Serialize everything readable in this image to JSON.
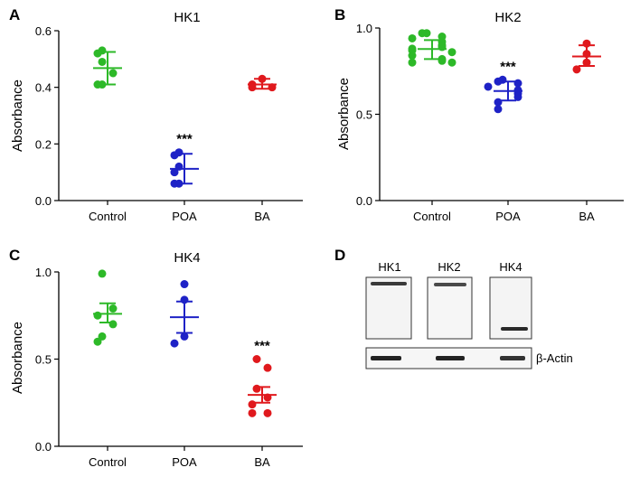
{
  "panels": [
    {
      "letter": "A",
      "chart_data": {
        "type": "scatter",
        "title": "HK1",
        "ylabel": "Absorbance",
        "ylim": [
          0,
          0.6
        ],
        "yticks": [
          "0.0",
          "0.2",
          "0.4",
          "0.6"
        ],
        "categories": [
          "Control",
          "POA",
          "BA"
        ],
        "colors": [
          "#2db928",
          "#1e22c6",
          "#e0191d"
        ],
        "groups": [
          {
            "category": "Control",
            "points": [
              0.53,
              0.52,
              0.49,
              0.45,
              0.41,
              0.41
            ],
            "mean": 0.468,
            "error": [
              0.41,
              0.525
            ]
          },
          {
            "category": "POA",
            "points": [
              0.17,
              0.16,
              0.12,
              0.1,
              0.06,
              0.06
            ],
            "mean": 0.112,
            "error": [
              0.06,
              0.165
            ],
            "annotation": "***"
          },
          {
            "category": "BA",
            "points": [
              0.43,
              0.41,
              0.4,
              0.4
            ],
            "mean": 0.41,
            "error": [
              0.395,
              0.43
            ]
          }
        ]
      }
    },
    {
      "letter": "B",
      "chart_data": {
        "type": "scatter",
        "title": "HK2",
        "ylabel": "Absorbance",
        "ylim": [
          0,
          1.0
        ],
        "yticks": [
          "0.0",
          "0.5",
          "1.0"
        ],
        "categories": [
          "Control",
          "POA",
          "BA"
        ],
        "colors": [
          "#2db928",
          "#1e22c6",
          "#e0191d"
        ],
        "groups": [
          {
            "category": "Control",
            "points": [
              0.97,
              0.97,
              0.95,
              0.94,
              0.92,
              0.9,
              0.89,
              0.88,
              0.87,
              0.86,
              0.84,
              0.82,
              0.81,
              0.8,
              0.8
            ],
            "mean": 0.878,
            "error": [
              0.82,
              0.93
            ]
          },
          {
            "category": "POA",
            "points": [
              0.7,
              0.69,
              0.68,
              0.66,
              0.64,
              0.62,
              0.6,
              0.57,
              0.53
            ],
            "mean": 0.635,
            "error": [
              0.58,
              0.69
            ],
            "annotation": "***"
          },
          {
            "category": "BA",
            "points": [
              0.91,
              0.85,
              0.8,
              0.76
            ],
            "mean": 0.835,
            "error": [
              0.78,
              0.9
            ]
          }
        ]
      }
    },
    {
      "letter": "C",
      "chart_data": {
        "type": "scatter",
        "title": "HK4",
        "ylabel": "Absorbance",
        "ylim": [
          0,
          1.0
        ],
        "yticks": [
          "0.0",
          "0.5",
          "1.0"
        ],
        "categories": [
          "Control",
          "POA",
          "BA"
        ],
        "colors": [
          "#2db928",
          "#1e22c6",
          "#e0191d"
        ],
        "groups": [
          {
            "category": "Control",
            "points": [
              0.99,
              0.79,
              0.75,
              0.7,
              0.63,
              0.6
            ],
            "mean": 0.76,
            "error": [
              0.71,
              0.82
            ]
          },
          {
            "category": "POA",
            "points": [
              0.93,
              0.84,
              0.63,
              0.59
            ],
            "mean": 0.74,
            "error": [
              0.65,
              0.83
            ]
          },
          {
            "category": "BA",
            "points": [
              0.5,
              0.45,
              0.33,
              0.28,
              0.24,
              0.19,
              0.19
            ],
            "mean": 0.295,
            "error": [
              0.25,
              0.34
            ],
            "annotation": "***"
          }
        ]
      }
    }
  ],
  "blot": {
    "letter": "D",
    "lanes": [
      "HK1",
      "HK2",
      "HK4"
    ],
    "loading_control": "β-Actin"
  }
}
